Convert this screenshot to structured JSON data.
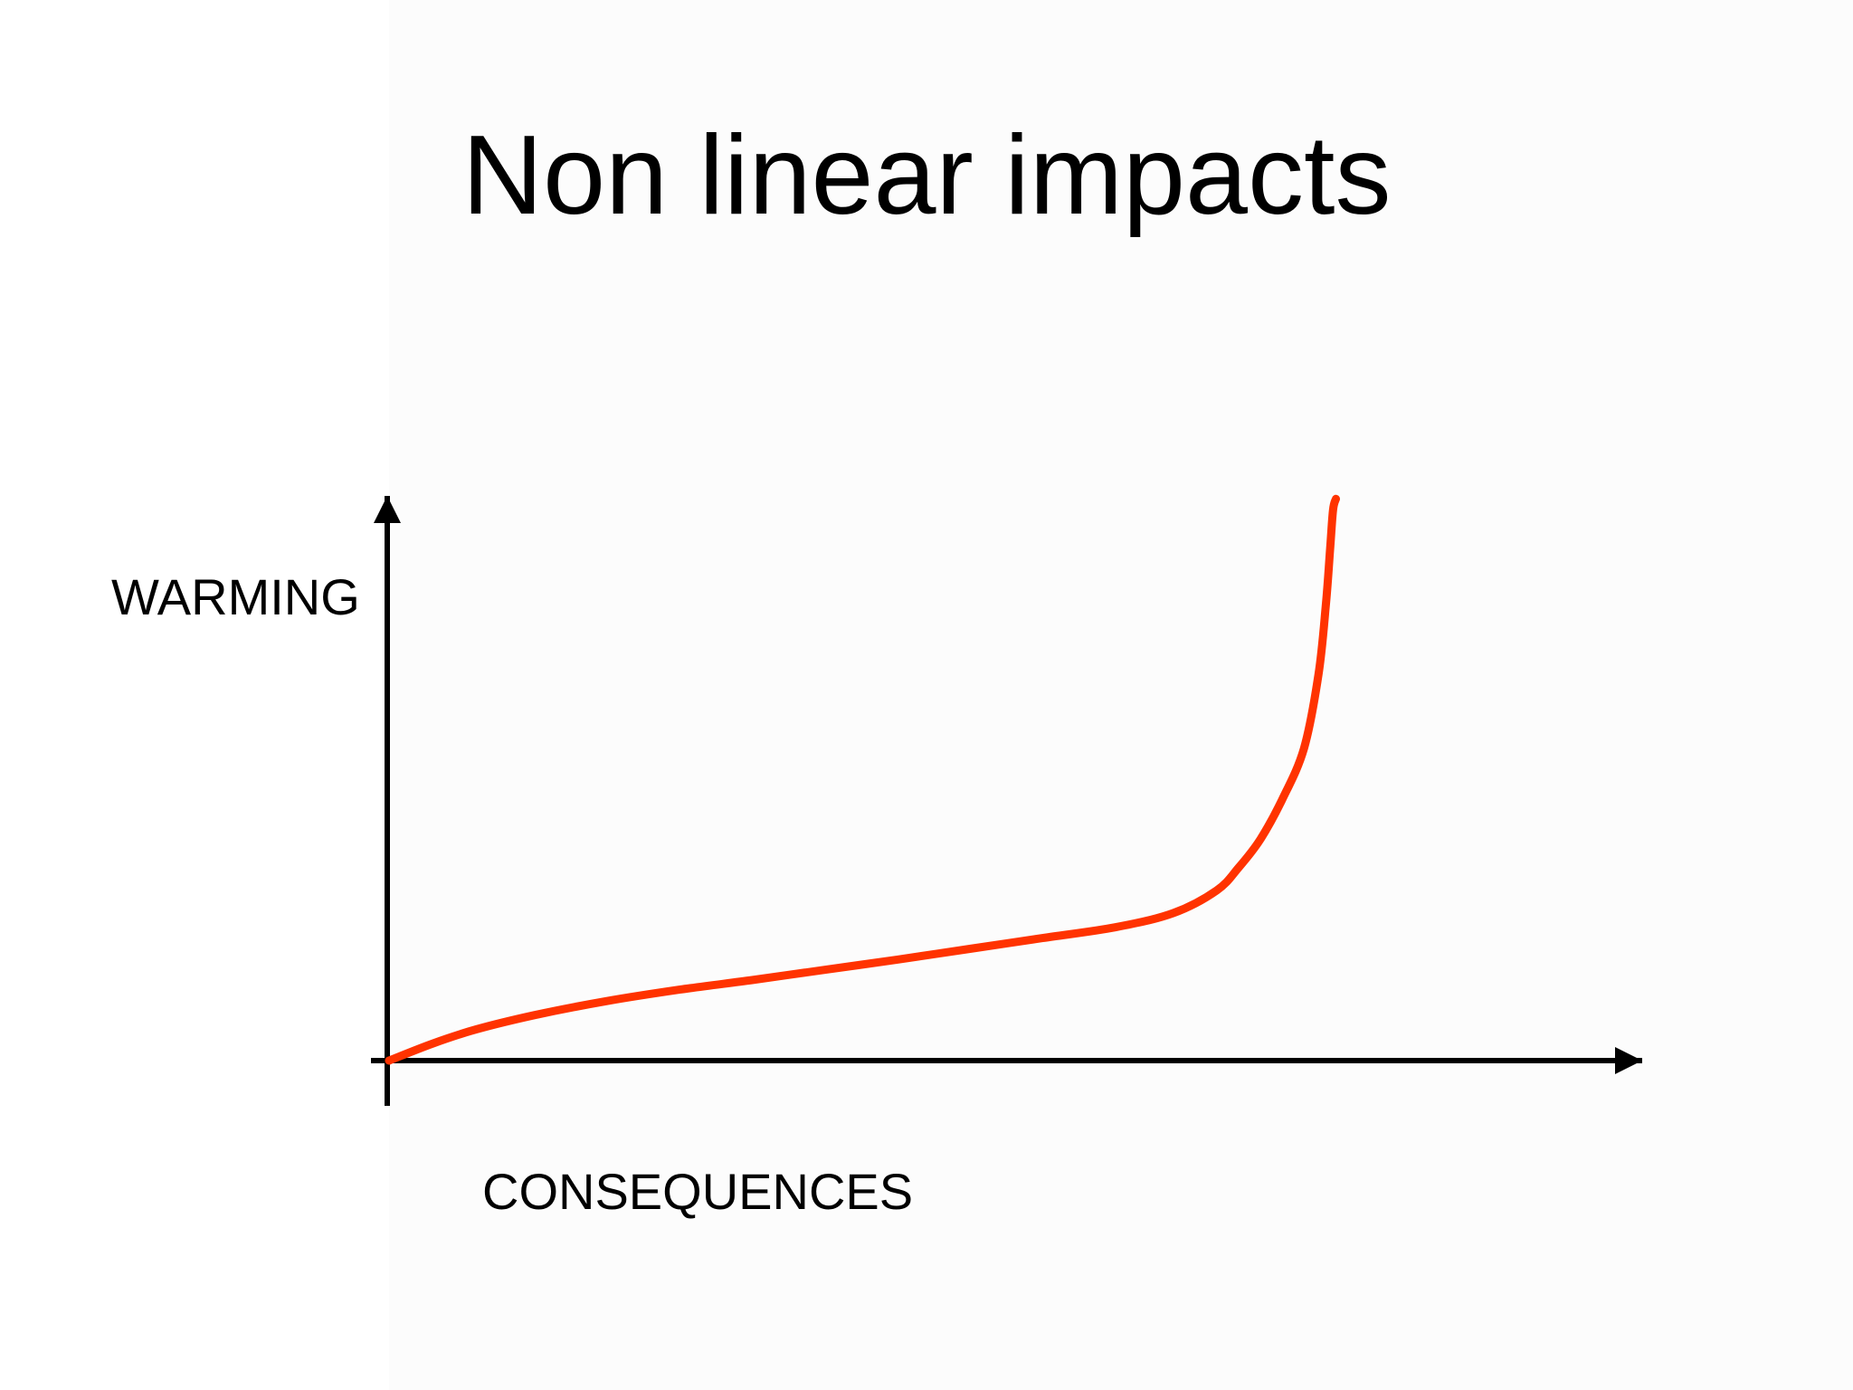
{
  "slide": {
    "background": "#ffffff"
  },
  "chart_data": {
    "type": "line",
    "title": "Non linear impacts",
    "xlabel": "CONSEQUENCES",
    "ylabel": "WARMING",
    "xlim": [
      0,
      100
    ],
    "ylim": [
      0,
      100
    ],
    "grid": false,
    "legend": "none",
    "tick_labels": false,
    "axis_color": "#000000",
    "series": [
      {
        "color": "#ff3300",
        "x": [
          0,
          3,
          6,
          10,
          15,
          20,
          25,
          30,
          35,
          40,
          45,
          50,
          54,
          57,
          58.5,
          60,
          61.5,
          63,
          64,
          64.5,
          64.8,
          65,
          65.2
        ],
        "y": [
          0,
          3,
          5.5,
          8,
          10.5,
          12.5,
          14.2,
          16,
          17.8,
          19.7,
          21.6,
          23.5,
          26,
          30,
          34,
          39,
          46,
          55,
          68,
          80,
          90,
          97,
          99
        ]
      }
    ]
  }
}
